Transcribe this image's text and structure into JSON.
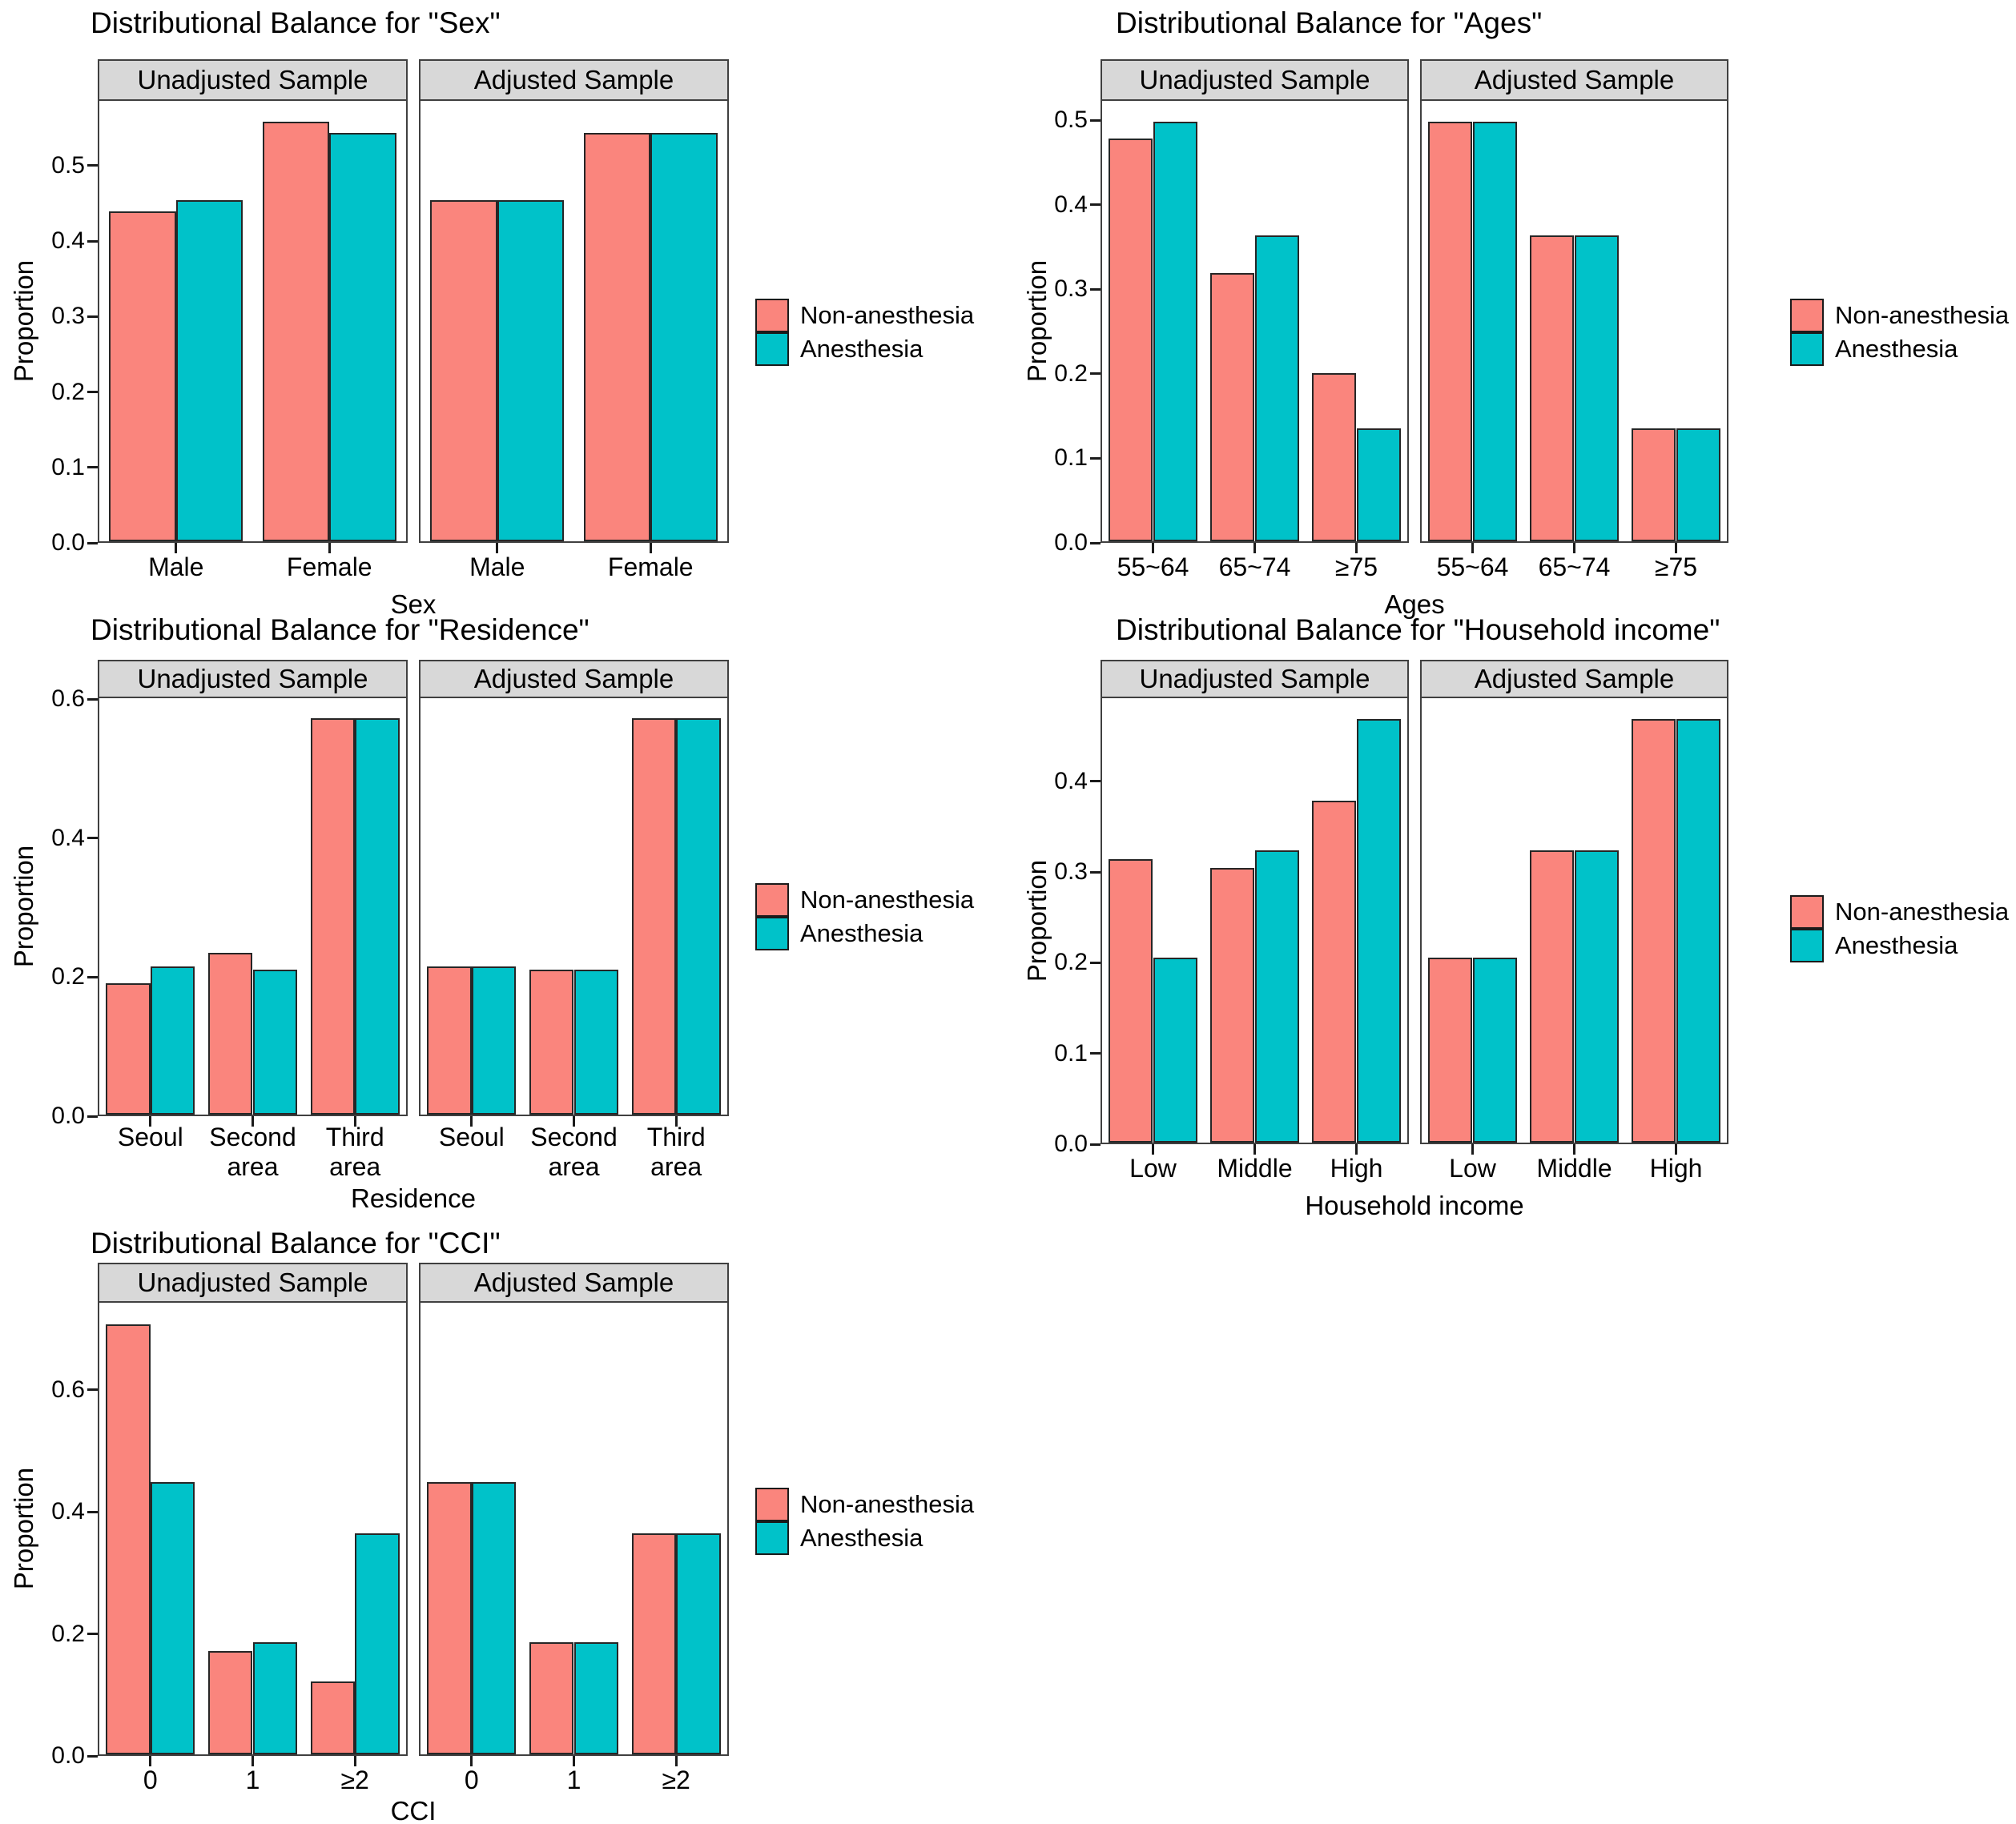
{
  "figure": {
    "ylabel": "Proportion",
    "legend": {
      "items": [
        {
          "label": "Non-anesthesia",
          "color": "#FA857D"
        },
        {
          "label": "Anesthesia",
          "color": "#00C2C9"
        }
      ]
    },
    "colors": {
      "strip_background": "#D8D8D8",
      "panel_border": "#404040",
      "bar_border": "#262626",
      "text": "#000000"
    }
  },
  "chart_data": [
    {
      "type": "bar",
      "title": "Distributional Balance for \"Sex\"",
      "xlabel": "Sex",
      "ylabel": "Proportion",
      "legend_position": "right",
      "grid": false,
      "ylim": [
        0,
        0.588
      ],
      "yticks": [
        {
          "v": 0.0,
          "label": "0.0"
        },
        {
          "v": 0.1,
          "label": "0.1"
        },
        {
          "v": 0.2,
          "label": "0.2"
        },
        {
          "v": 0.3,
          "label": "0.3"
        },
        {
          "v": 0.4,
          "label": "0.4"
        },
        {
          "v": 0.5,
          "label": "0.5"
        }
      ],
      "facets": [
        {
          "label": "Unadjusted Sample",
          "categories": [
            "Male",
            "Female"
          ],
          "series": [
            {
              "name": "Non-anesthesia",
              "values": [
                0.44,
                0.56
              ]
            },
            {
              "name": "Anesthesia",
              "values": [
                0.455,
                0.545
              ]
            }
          ]
        },
        {
          "label": "Adjusted Sample",
          "categories": [
            "Male",
            "Female"
          ],
          "series": [
            {
              "name": "Non-anesthesia",
              "values": [
                0.455,
                0.545
              ]
            },
            {
              "name": "Anesthesia",
              "values": [
                0.455,
                0.545
              ]
            }
          ]
        }
      ]
    },
    {
      "type": "bar",
      "title": "Distributional Balance for \"Ages\"",
      "xlabel": "Ages",
      "ylabel": "Proportion",
      "legend_position": "right",
      "grid": false,
      "ylim": [
        0,
        0.525
      ],
      "yticks": [
        {
          "v": 0.0,
          "label": "0.0"
        },
        {
          "v": 0.1,
          "label": "0.1"
        },
        {
          "v": 0.2,
          "label": "0.2"
        },
        {
          "v": 0.3,
          "label": "0.3"
        },
        {
          "v": 0.4,
          "label": "0.4"
        },
        {
          "v": 0.5,
          "label": "0.5"
        }
      ],
      "facets": [
        {
          "label": "Unadjusted Sample",
          "categories": [
            "55~64",
            "65~74",
            "≥75"
          ],
          "series": [
            {
              "name": "Non-anesthesia",
              "values": [
                0.48,
                0.32,
                0.2
              ]
            },
            {
              "name": "Anesthesia",
              "values": [
                0.5,
                0.365,
                0.135
              ]
            }
          ]
        },
        {
          "label": "Adjusted Sample",
          "categories": [
            "55~64",
            "65~74",
            "≥75"
          ],
          "series": [
            {
              "name": "Non-anesthesia",
              "values": [
                0.5,
                0.365,
                0.135
              ]
            },
            {
              "name": "Anesthesia",
              "values": [
                0.5,
                0.365,
                0.135
              ]
            }
          ]
        }
      ]
    },
    {
      "type": "bar",
      "title": "Distributional Balance for \"Residence\"",
      "xlabel": "Residence",
      "ylabel": "Proportion",
      "legend_position": "right",
      "grid": false,
      "ylim": [
        0,
        0.604
      ],
      "yticks": [
        {
          "v": 0.0,
          "label": "0.0"
        },
        {
          "v": 0.2,
          "label": "0.2"
        },
        {
          "v": 0.4,
          "label": "0.4"
        },
        {
          "v": 0.6,
          "label": "0.6"
        }
      ],
      "facets": [
        {
          "label": "Unadjusted Sample",
          "categories": [
            "Seoul",
            "Second\narea",
            "Third\narea"
          ],
          "series": [
            {
              "name": "Non-anesthesia",
              "values": [
                0.19,
                0.235,
                0.575
              ]
            },
            {
              "name": "Anesthesia",
              "values": [
                0.215,
                0.21,
                0.575
              ]
            }
          ]
        },
        {
          "label": "Adjusted Sample",
          "categories": [
            "Seoul",
            "Second\narea",
            "Third\narea"
          ],
          "series": [
            {
              "name": "Non-anesthesia",
              "values": [
                0.215,
                0.21,
                0.575
              ]
            },
            {
              "name": "Anesthesia",
              "values": [
                0.215,
                0.21,
                0.575
              ]
            }
          ]
        }
      ]
    },
    {
      "type": "bar",
      "title": "Distributional Balance for \"Household income\"",
      "xlabel": "Household income",
      "ylabel": "Proportion",
      "legend_position": "right",
      "grid": false,
      "ylim": [
        0,
        0.4935
      ],
      "yticks": [
        {
          "v": 0.0,
          "label": "0.0"
        },
        {
          "v": 0.1,
          "label": "0.1"
        },
        {
          "v": 0.2,
          "label": "0.2"
        },
        {
          "v": 0.3,
          "label": "0.3"
        },
        {
          "v": 0.4,
          "label": "0.4"
        }
      ],
      "facets": [
        {
          "label": "Unadjusted Sample",
          "categories": [
            "Low",
            "Middle",
            "High"
          ],
          "series": [
            {
              "name": "Non-anesthesia",
              "values": [
                0.315,
                0.305,
                0.38
              ]
            },
            {
              "name": "Anesthesia",
              "values": [
                0.205,
                0.325,
                0.47
              ]
            }
          ]
        },
        {
          "label": "Adjusted Sample",
          "categories": [
            "Low",
            "Middle",
            "High"
          ],
          "series": [
            {
              "name": "Non-anesthesia",
              "values": [
                0.205,
                0.325,
                0.47
              ]
            },
            {
              "name": "Anesthesia",
              "values": [
                0.205,
                0.325,
                0.47
              ]
            }
          ]
        }
      ]
    },
    {
      "type": "bar",
      "title": "Distributional Balance for \"CCI\"",
      "xlabel": "CCI",
      "ylabel": "Proportion",
      "legend_position": "right",
      "grid": false,
      "ylim": [
        0,
        0.7455
      ],
      "yticks": [
        {
          "v": 0.0,
          "label": "0.0"
        },
        {
          "v": 0.2,
          "label": "0.2"
        },
        {
          "v": 0.4,
          "label": "0.4"
        },
        {
          "v": 0.6,
          "label": "0.6"
        }
      ],
      "facets": [
        {
          "label": "Unadjusted Sample",
          "categories": [
            "0",
            "1",
            "≥2"
          ],
          "series": [
            {
              "name": "Non-anesthesia",
              "values": [
                0.71,
                0.17,
                0.12
              ]
            },
            {
              "name": "Anesthesia",
              "values": [
                0.45,
                0.185,
                0.365
              ]
            }
          ]
        },
        {
          "label": "Adjusted Sample",
          "categories": [
            "0",
            "1",
            "≥2"
          ],
          "series": [
            {
              "name": "Non-anesthesia",
              "values": [
                0.45,
                0.185,
                0.365
              ]
            },
            {
              "name": "Anesthesia",
              "values": [
                0.45,
                0.185,
                0.365
              ]
            }
          ]
        }
      ]
    }
  ]
}
